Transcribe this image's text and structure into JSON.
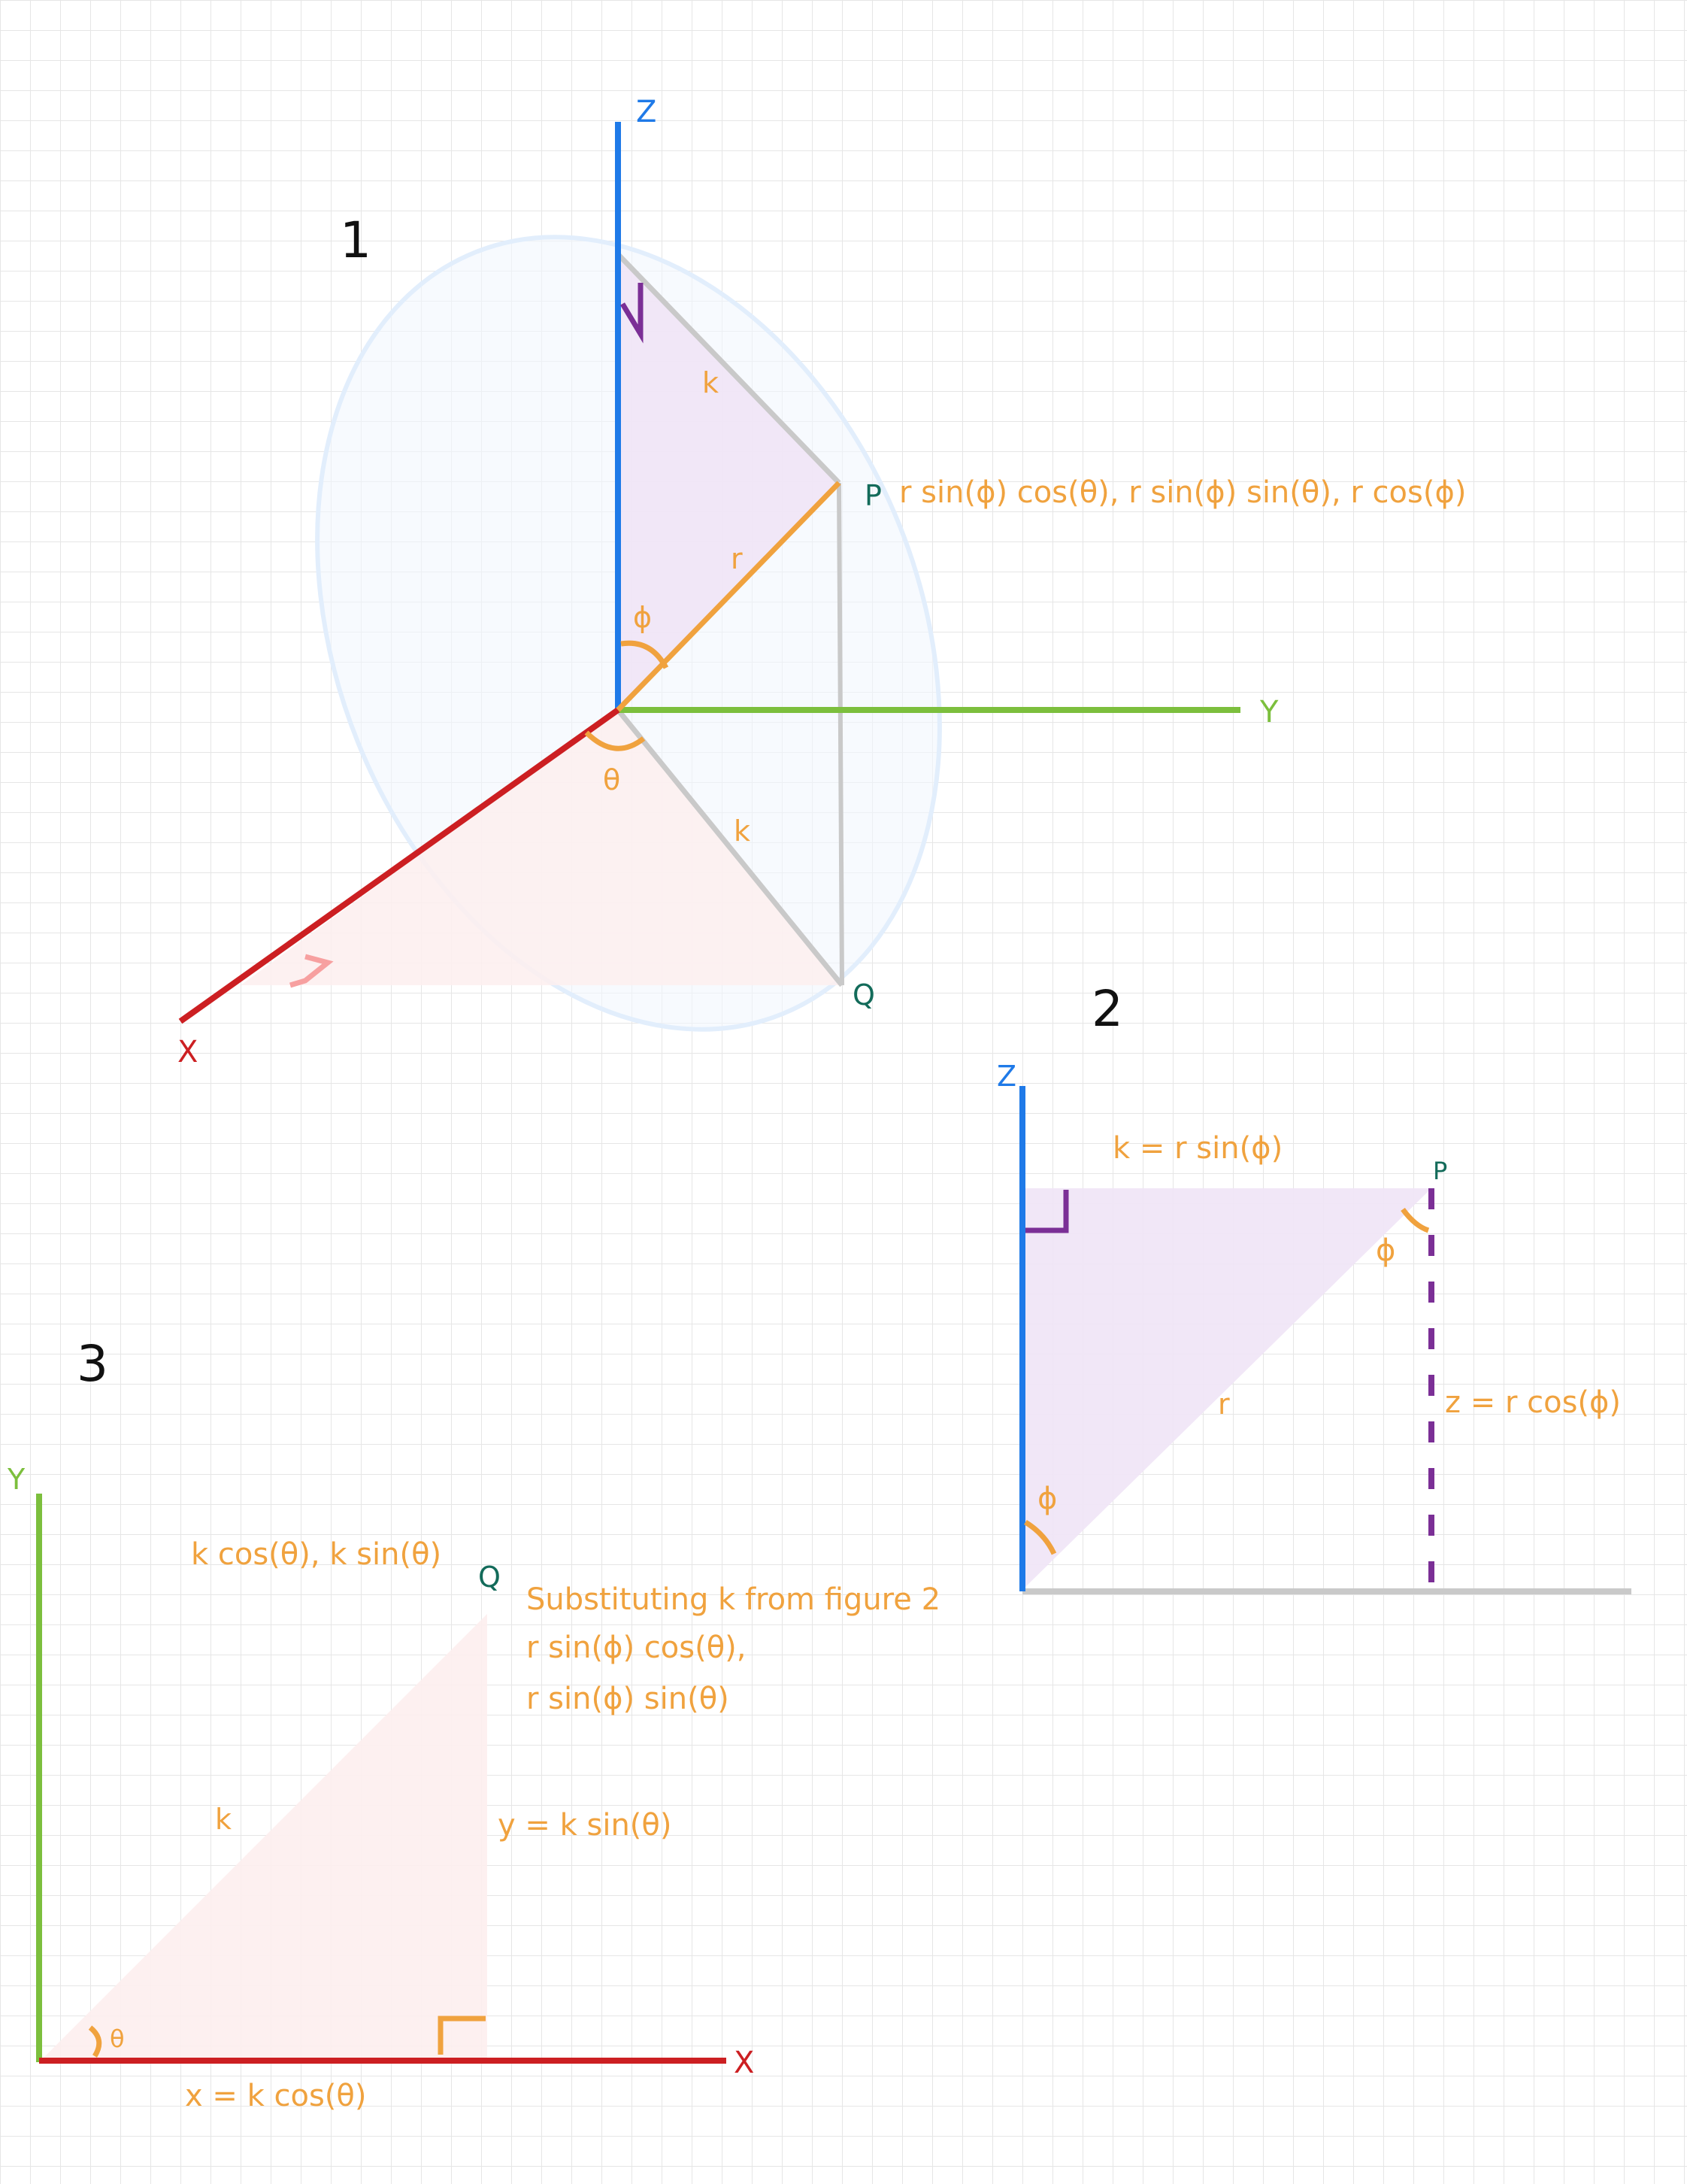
{
  "colors": {
    "z_axis": "#1f7ae8",
    "y_axis": "#7cbf3d",
    "x_axis": "#cc1f22",
    "label": "#f0a23e",
    "point": "#136b5a",
    "right_angle": "#7b2f96",
    "grey_line": "#c9c9c9",
    "purple_fill": "#efe4f6",
    "red_fill": "#fdeeee",
    "sphere": "#e4f0fd",
    "grid": "#e6e6e6"
  },
  "figure1": {
    "number": "1",
    "axis_z": "Z",
    "axis_y": "Y",
    "axis_x": "X",
    "point_p": "P",
    "point_q": "Q",
    "p_coords": "r sin(ϕ) cos(θ), r sin(ϕ) sin(θ), r cos(ϕ)",
    "label_k_top": "k",
    "label_k_bottom": "k",
    "label_r": "r",
    "label_phi": "ϕ",
    "label_theta": "θ"
  },
  "figure2": {
    "number": "2",
    "axis_z": "Z",
    "point_p": "P",
    "k_eq": "k = r sin(ϕ)",
    "z_eq": "z = r cos(ϕ)",
    "label_r": "r",
    "label_phi_top": "ϕ",
    "label_phi_bottom": "ϕ"
  },
  "figure3": {
    "number": "3",
    "axis_y": "Y",
    "axis_x": "X",
    "point_q": "Q",
    "q_coords": "k cos(θ), k sin(θ)",
    "substitution_lines": [
      "Substituting k from figure 2",
      "r sin(ϕ) cos(θ),",
      "r sin(ϕ) sin(θ)"
    ],
    "label_k": "k",
    "y_eq": "y = k sin(θ)",
    "x_eq": "x = k cos(θ)",
    "label_theta": "θ"
  }
}
